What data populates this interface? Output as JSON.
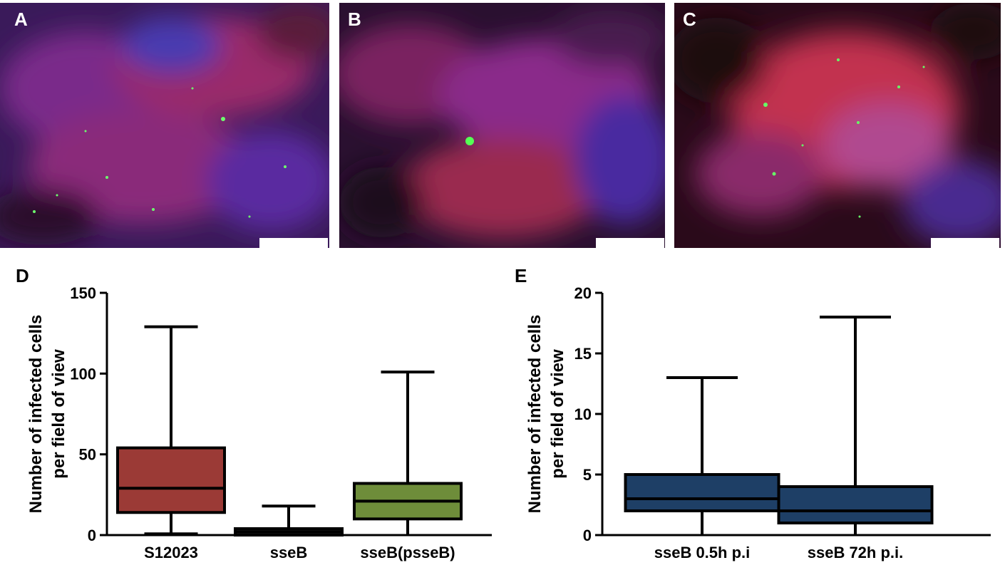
{
  "panels": {
    "A": {
      "label": "A"
    },
    "B": {
      "label": "B"
    },
    "C": {
      "label": "C"
    },
    "D": {
      "label": "D"
    },
    "E": {
      "label": "E"
    }
  },
  "colors": {
    "red_box": "#9b3a36",
    "green_box": "#6e8d3a",
    "navy_box": "#1e3f66",
    "dark_box": "#1a1a1a"
  },
  "chart_data": [
    {
      "type": "box",
      "panel": "D",
      "ylabel": "Number of infected cells per field of view",
      "ylabel_lines": [
        "Number of infected cells",
        "per field of view"
      ],
      "ylim": [
        0,
        150
      ],
      "yticks": [
        0,
        50,
        100,
        150
      ],
      "categories": [
        "S12023",
        "sseB",
        "sseB(psseB)"
      ],
      "boxes": [
        {
          "min": 1,
          "q1": 14,
          "median": 29,
          "q3": 54,
          "max": 129,
          "color": "#9b3a36"
        },
        {
          "min": 0,
          "q1": 0,
          "median": 2,
          "q3": 4,
          "max": 18,
          "color": "#1a1a1a"
        },
        {
          "min": 0,
          "q1": 10,
          "median": 21,
          "q3": 32,
          "max": 101,
          "color": "#6e8d3a"
        }
      ]
    },
    {
      "type": "box",
      "panel": "E",
      "ylabel": "Number of infected cells per field of view",
      "ylabel_lines": [
        "Number of infected cells",
        "per field of view"
      ],
      "ylim": [
        0,
        20
      ],
      "yticks": [
        0,
        5,
        10,
        15,
        20
      ],
      "categories": [
        "sseB 0.5h p.i",
        "sseB 72h p.i."
      ],
      "boxes": [
        {
          "min": 0,
          "q1": 2,
          "median": 3,
          "q3": 5,
          "max": 13,
          "color": "#1e3f66"
        },
        {
          "min": 0,
          "q1": 1,
          "median": 2,
          "q3": 4,
          "max": 18,
          "color": "#1e3f66"
        }
      ]
    }
  ]
}
